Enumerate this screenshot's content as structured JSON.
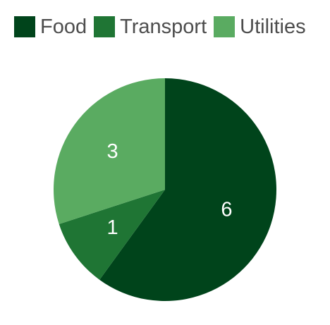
{
  "chart_data": {
    "type": "pie",
    "legend_position": "top",
    "slices": [
      {
        "label": "Food",
        "value": 6,
        "color": "#00441b"
      },
      {
        "label": "Transport",
        "value": 1,
        "color": "#1f7534"
      },
      {
        "label": "Utilities",
        "value": 3,
        "color": "#5aab61"
      }
    ],
    "data_labels_shown": true
  }
}
